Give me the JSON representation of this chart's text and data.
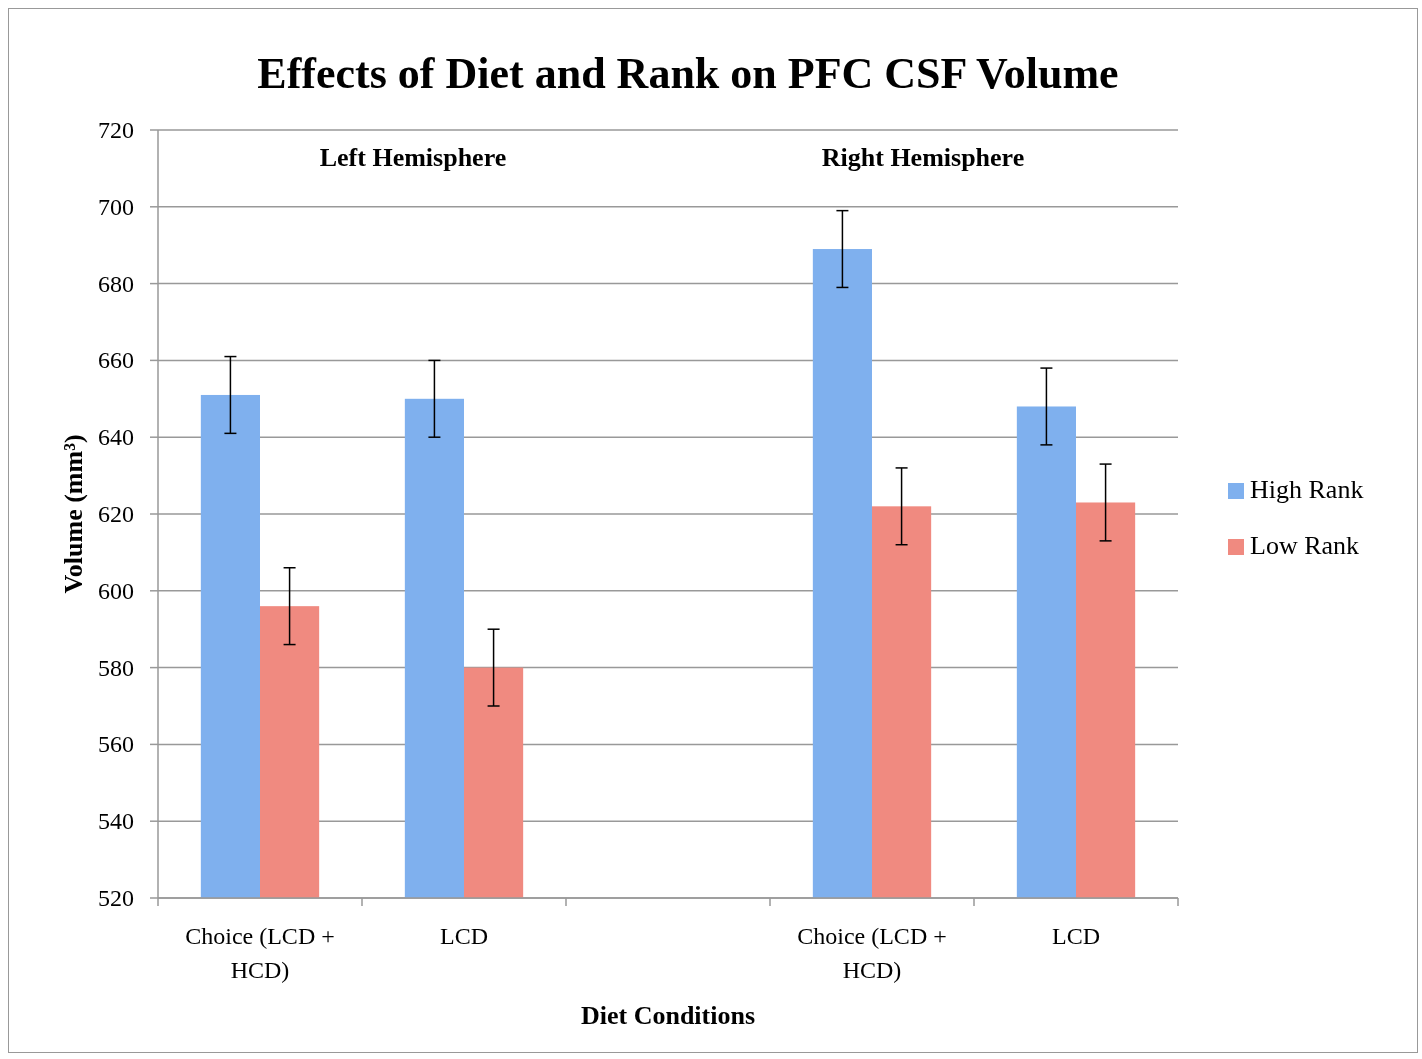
{
  "chart_data": {
    "type": "bar",
    "title": "Effects of Diet and Rank on PFC CSF Volume",
    "xlabel": "Diet Conditions",
    "ylabel": "Volume (mm³)",
    "annotations": [
      "Left Hemisphere",
      "Right Hemisphere"
    ],
    "categories": [
      "Choice (LCD + HCD)",
      "LCD",
      null,
      "Choice (LCD + HCD)",
      "LCD"
    ],
    "series": [
      {
        "name": "High Rank",
        "color": "#7fb0ee",
        "values": [
          651,
          650,
          null,
          689,
          648
        ],
        "errors": [
          10,
          10,
          null,
          10,
          10
        ]
      },
      {
        "name": "Low Rank",
        "color": "#f08a80",
        "values": [
          596,
          580,
          null,
          622,
          623
        ],
        "errors": [
          10,
          10,
          null,
          10,
          10
        ]
      }
    ],
    "ylim": [
      520,
      720
    ],
    "yticks": [
      520,
      540,
      560,
      580,
      600,
      620,
      640,
      660,
      680,
      700,
      720
    ],
    "grid": "y",
    "legend": "right"
  }
}
